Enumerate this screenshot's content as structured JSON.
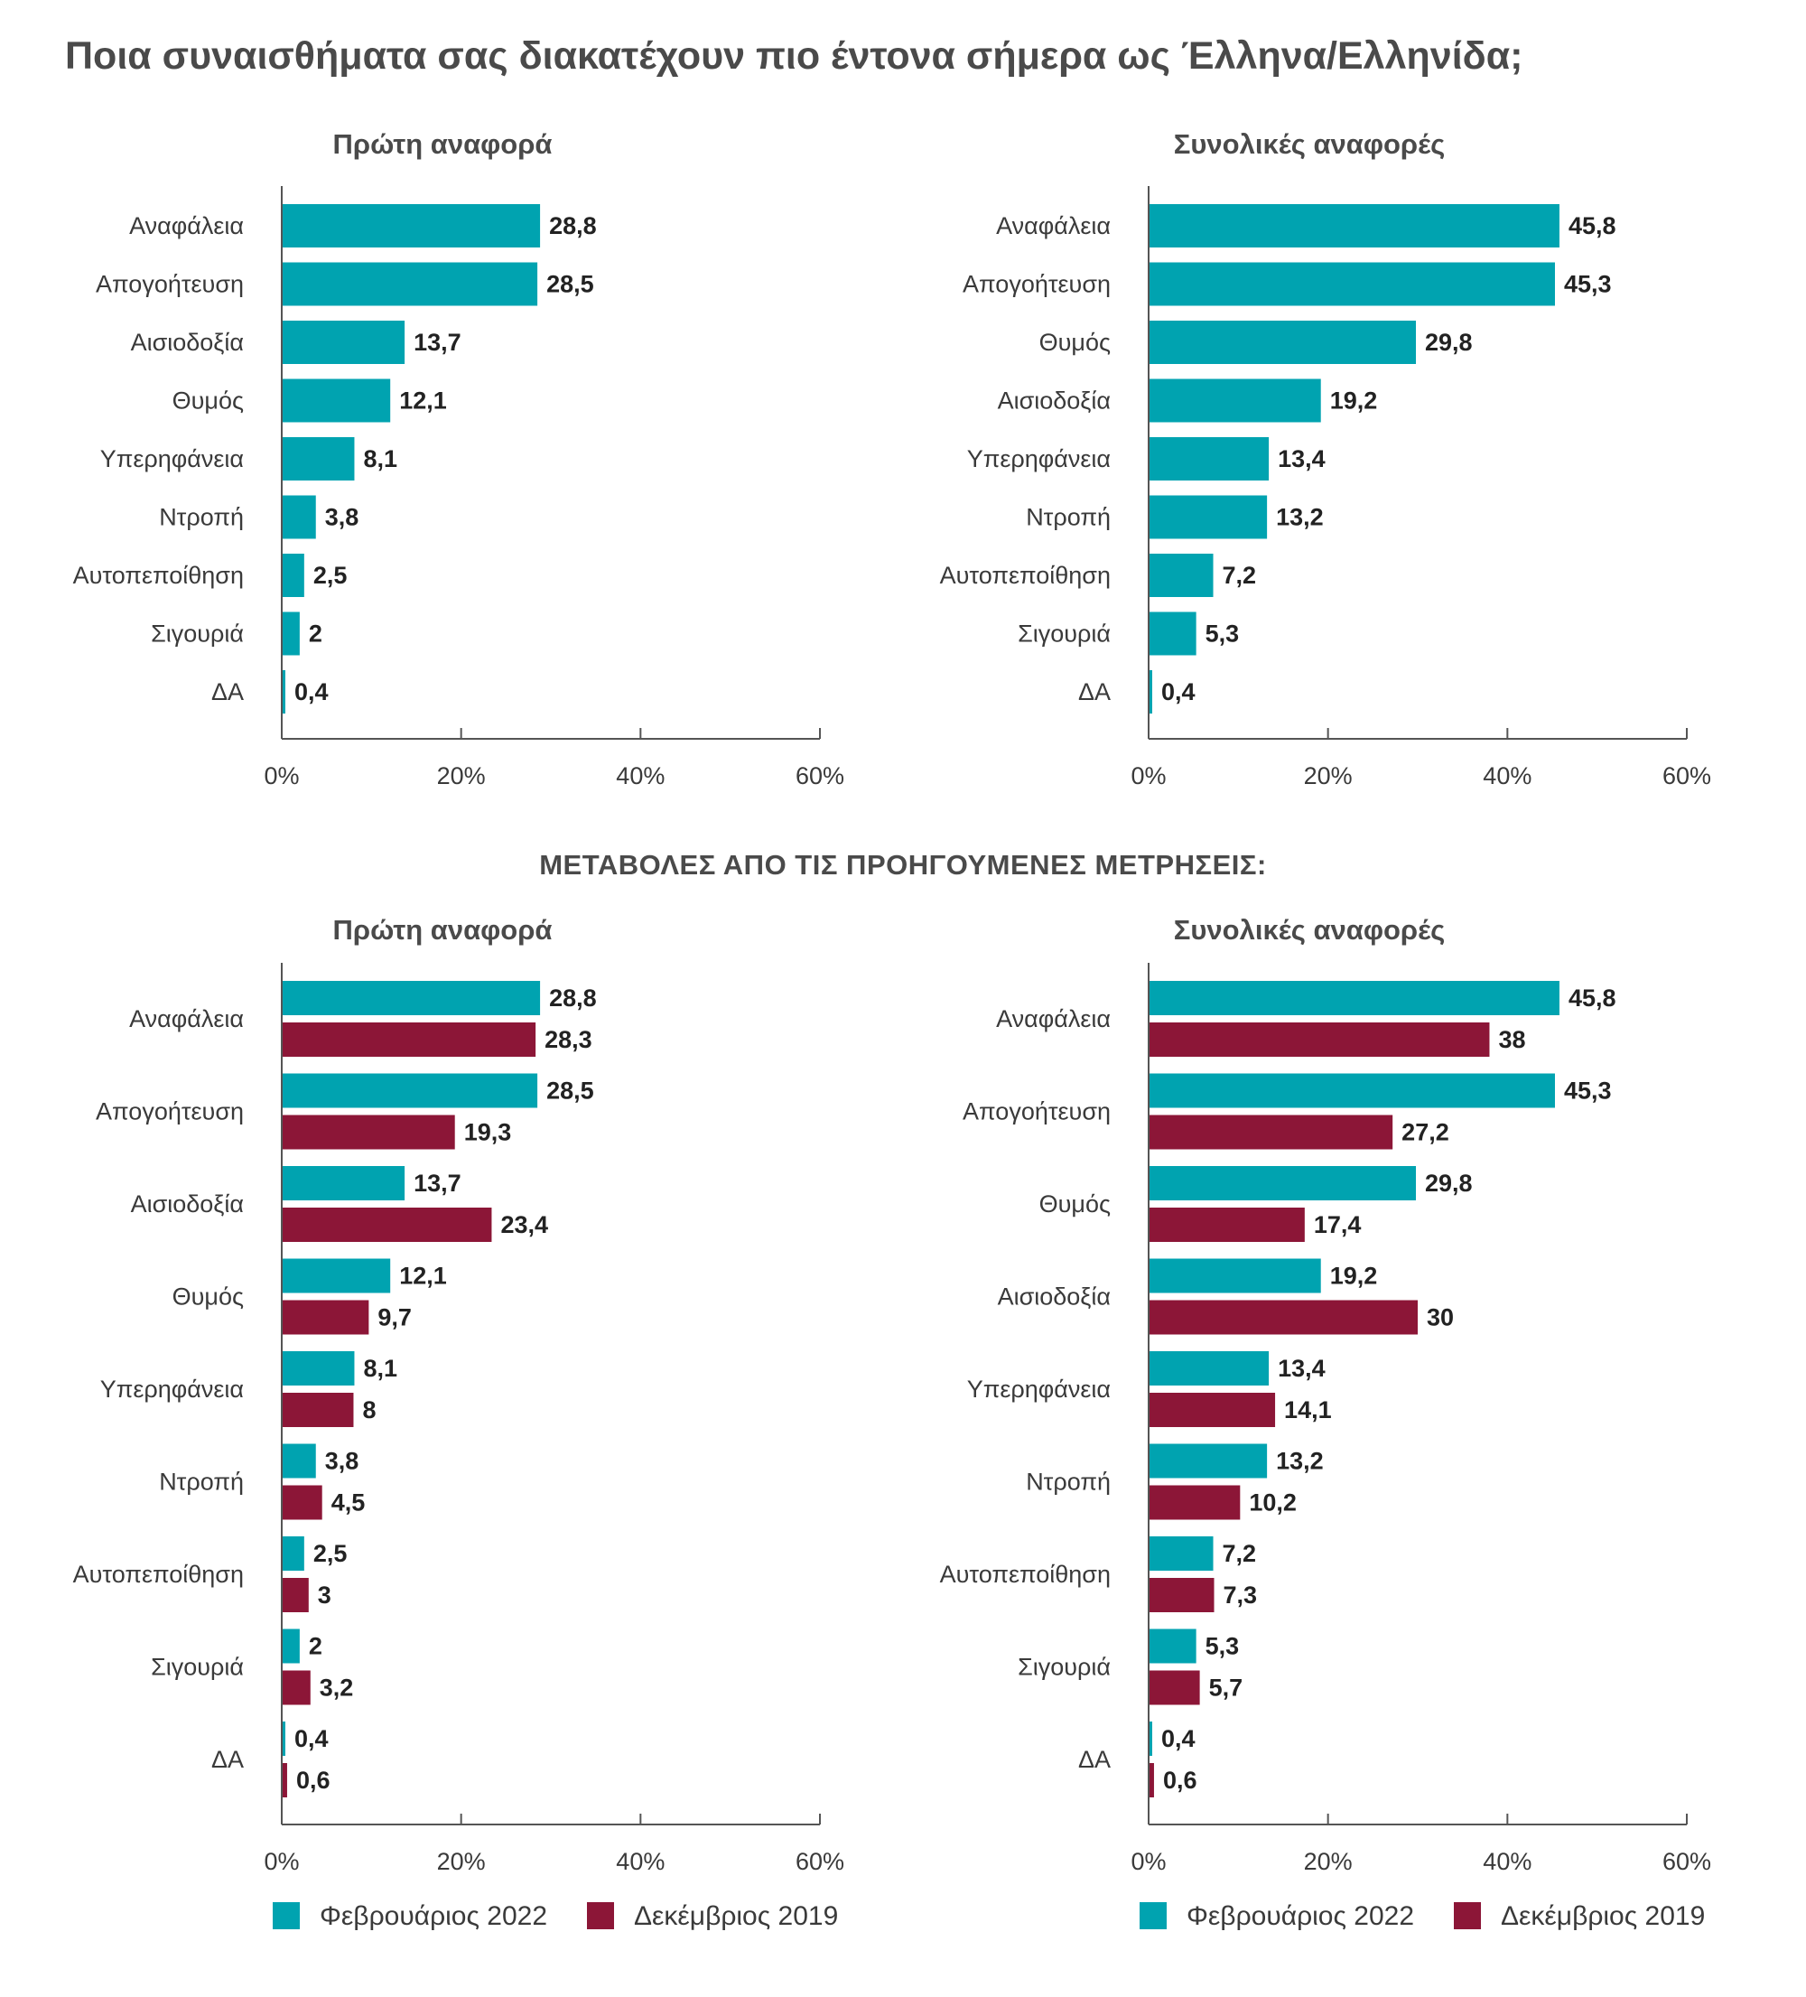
{
  "page": {
    "title": "Ποια συναισθήματα σας διακατέχουν πιο έντονα σήμερα ως Έλληνα/Ελληνίδα;",
    "section_heading": "ΜΕΤΑΒΟΛΕΣ ΑΠΟ ΤΙΣ ΠΡΟΗΓΟΥΜΕΝΕΣ ΜΕΤΡΗΣΕΙΣ:"
  },
  "colors": {
    "teal": "#00A3B0",
    "crimson": "#8C1637",
    "axis": "#555555"
  },
  "chart_data": [
    {
      "type": "bar",
      "orientation": "horizontal",
      "title": "Πρώτη αναφορά",
      "categories": [
        "Αναφάλεια",
        "Απογοήτευση",
        "Αισιοδοξία",
        "Θυμός",
        "Υπερηφάνεια",
        "Ντροπή",
        "Αυτοπεποίθηση",
        "Σιγουριά",
        "ΔΑ"
      ],
      "series": [
        {
          "values": [
            28.8,
            28.5,
            13.7,
            12.1,
            8.1,
            3.8,
            2.5,
            2,
            0.4
          ],
          "labels": [
            "28,8",
            "28,5",
            "13,7",
            "12,1",
            "8,1",
            "3,8",
            "2,5",
            "2",
            "0,4"
          ],
          "color": "#00A3B0"
        }
      ],
      "xlim": [
        0,
        60
      ],
      "ticks": [
        "0%",
        "20%",
        "40%",
        "60%"
      ],
      "grid": false
    },
    {
      "type": "bar",
      "orientation": "horizontal",
      "title": "Συνολικές αναφορές",
      "categories": [
        "Αναφάλεια",
        "Απογοήτευση",
        "Θυμός",
        "Αισιοδοξία",
        "Υπερηφάνεια",
        "Ντροπή",
        "Αυτοπεποίθηση",
        "Σιγουριά",
        "ΔΑ"
      ],
      "series": [
        {
          "values": [
            45.8,
            45.3,
            29.8,
            19.2,
            13.4,
            13.2,
            7.2,
            5.3,
            0.4
          ],
          "labels": [
            "45,8",
            "45,3",
            "29,8",
            "19,2",
            "13,4",
            "13,2",
            "7,2",
            "5,3",
            "0,4"
          ],
          "color": "#00A3B0"
        }
      ],
      "xlim": [
        0,
        60
      ],
      "ticks": [
        "0%",
        "20%",
        "40%",
        "60%"
      ],
      "grid": false
    },
    {
      "type": "bar",
      "orientation": "horizontal",
      "title": "Πρώτη αναφορά",
      "categories": [
        "Αναφάλεια",
        "Απογοήτευση",
        "Αισιοδοξία",
        "Θυμός",
        "Υπερηφάνεια",
        "Ντροπή",
        "Αυτοπεποίθηση",
        "Σιγουριά",
        "ΔΑ"
      ],
      "series": [
        {
          "name": "Φεβρουάριος 2022",
          "values": [
            28.8,
            28.5,
            13.7,
            12.1,
            8.1,
            3.8,
            2.5,
            2,
            0.4
          ],
          "labels": [
            "28,8",
            "28,5",
            "13,7",
            "12,1",
            "8,1",
            "3,8",
            "2,5",
            "2",
            "0,4"
          ],
          "color": "#00A3B0"
        },
        {
          "name": "Δεκέμβριος 2019",
          "values": [
            28.3,
            19.3,
            23.4,
            9.7,
            8,
            4.5,
            3,
            3.2,
            0.6
          ],
          "labels": [
            "28,3",
            "19,3",
            "23,4",
            "9,7",
            "8",
            "4,5",
            "3",
            "3,2",
            "0,6"
          ],
          "color": "#8C1637"
        }
      ],
      "xlim": [
        0,
        60
      ],
      "ticks": [
        "0%",
        "20%",
        "40%",
        "60%"
      ],
      "legend": "bottom",
      "grid": false
    },
    {
      "type": "bar",
      "orientation": "horizontal",
      "title": "Συνολικές αναφορές",
      "categories": [
        "Αναφάλεια",
        "Απογοήτευση",
        "Θυμός",
        "Αισιοδοξία",
        "Υπερηφάνεια",
        "Ντροπή",
        "Αυτοπεποίθηση",
        "Σιγουριά",
        "ΔΑ"
      ],
      "series": [
        {
          "name": "Φεβρουάριος 2022",
          "values": [
            45.8,
            45.3,
            29.8,
            19.2,
            13.4,
            13.2,
            7.2,
            5.3,
            0.4
          ],
          "labels": [
            "45,8",
            "45,3",
            "29,8",
            "19,2",
            "13,4",
            "13,2",
            "7,2",
            "5,3",
            "0,4"
          ],
          "color": "#00A3B0"
        },
        {
          "name": "Δεκέμβριος 2019",
          "values": [
            38,
            27.2,
            17.4,
            30,
            14.1,
            10.2,
            7.3,
            5.7,
            0.6
          ],
          "labels": [
            "38",
            "27,2",
            "17,4",
            "30",
            "14,1",
            "10,2",
            "7,3",
            "5,7",
            "0,6"
          ],
          "color": "#8C1637"
        }
      ],
      "xlim": [
        0,
        60
      ],
      "ticks": [
        "0%",
        "20%",
        "40%",
        "60%"
      ],
      "legend": "bottom",
      "grid": false
    }
  ]
}
